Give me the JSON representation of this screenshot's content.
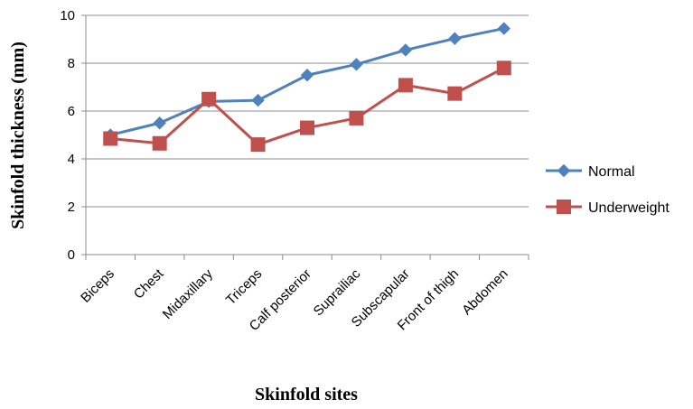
{
  "chart_data": {
    "type": "line",
    "categories": [
      "Biceps",
      "Chest",
      "Midaxillary",
      "Triceps",
      "Calf posterior",
      "Suprailiac",
      "Subscapular",
      "Front of thigh",
      "Abdomen"
    ],
    "series": [
      {
        "name": "Normal",
        "color": "#4F81BD",
        "marker": "diamond",
        "values": [
          5.0,
          5.5,
          6.4,
          6.45,
          7.5,
          7.95,
          8.55,
          9.03,
          9.45
        ]
      },
      {
        "name": "Underweight",
        "color": "#C0504D",
        "marker": "square",
        "values": [
          4.85,
          4.65,
          6.5,
          4.6,
          5.3,
          5.7,
          7.08,
          6.73,
          7.8
        ]
      }
    ],
    "xlabel": "Skinfold sites",
    "ylabel": "Skinfold thickness (mm)",
    "ylim": [
      0,
      10
    ],
    "yticks": [
      0,
      2,
      4,
      6,
      8,
      10
    ],
    "grid": true,
    "legend_position": "right"
  }
}
